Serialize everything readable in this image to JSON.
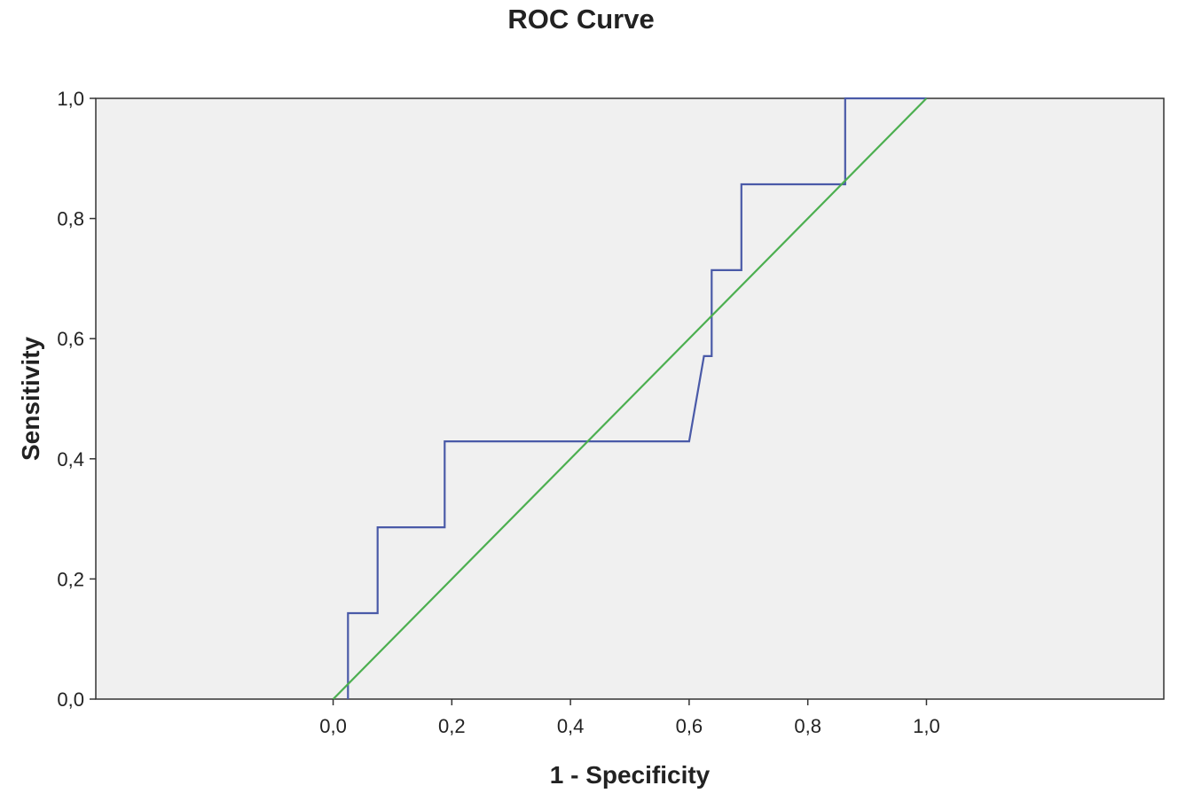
{
  "chart_data": {
    "type": "line",
    "title": "ROC Curve",
    "xlabel": "1 - Specificity",
    "ylabel": "Sensitivity",
    "xlim": [
      -0.4,
      1.4
    ],
    "ylim": [
      0,
      1
    ],
    "x_ticks": [
      {
        "value": 0.0,
        "label": "0,0"
      },
      {
        "value": 0.2,
        "label": "0,2"
      },
      {
        "value": 0.4,
        "label": "0,4"
      },
      {
        "value": 0.6,
        "label": "0,6"
      },
      {
        "value": 0.8,
        "label": "0,8"
      },
      {
        "value": 1.0,
        "label": "1,0"
      }
    ],
    "y_ticks": [
      {
        "value": 0.0,
        "label": "0,0"
      },
      {
        "value": 0.2,
        "label": "0,2"
      },
      {
        "value": 0.4,
        "label": "0,4"
      },
      {
        "value": 0.6,
        "label": "0,6"
      },
      {
        "value": 0.8,
        "label": "0,8"
      },
      {
        "value": 1.0,
        "label": "1,0"
      }
    ],
    "grid": false,
    "plot_background": "#f0f0f0",
    "series": [
      {
        "color": "#4a5aa8",
        "points": [
          [
            0.025,
            0.0
          ],
          [
            0.025,
            0.143
          ],
          [
            0.075,
            0.143
          ],
          [
            0.075,
            0.286
          ],
          [
            0.188,
            0.286
          ],
          [
            0.188,
            0.429
          ],
          [
            0.6,
            0.429
          ],
          [
            0.625,
            0.571
          ],
          [
            0.638,
            0.571
          ],
          [
            0.638,
            0.714
          ],
          [
            0.688,
            0.714
          ],
          [
            0.688,
            0.857
          ],
          [
            0.863,
            0.857
          ],
          [
            0.863,
            1.0
          ],
          [
            1.0,
            1.0
          ]
        ]
      },
      {
        "color": "#4caf50",
        "points": [
          [
            0.0,
            0.0
          ],
          [
            1.0,
            1.0
          ]
        ]
      }
    ]
  }
}
